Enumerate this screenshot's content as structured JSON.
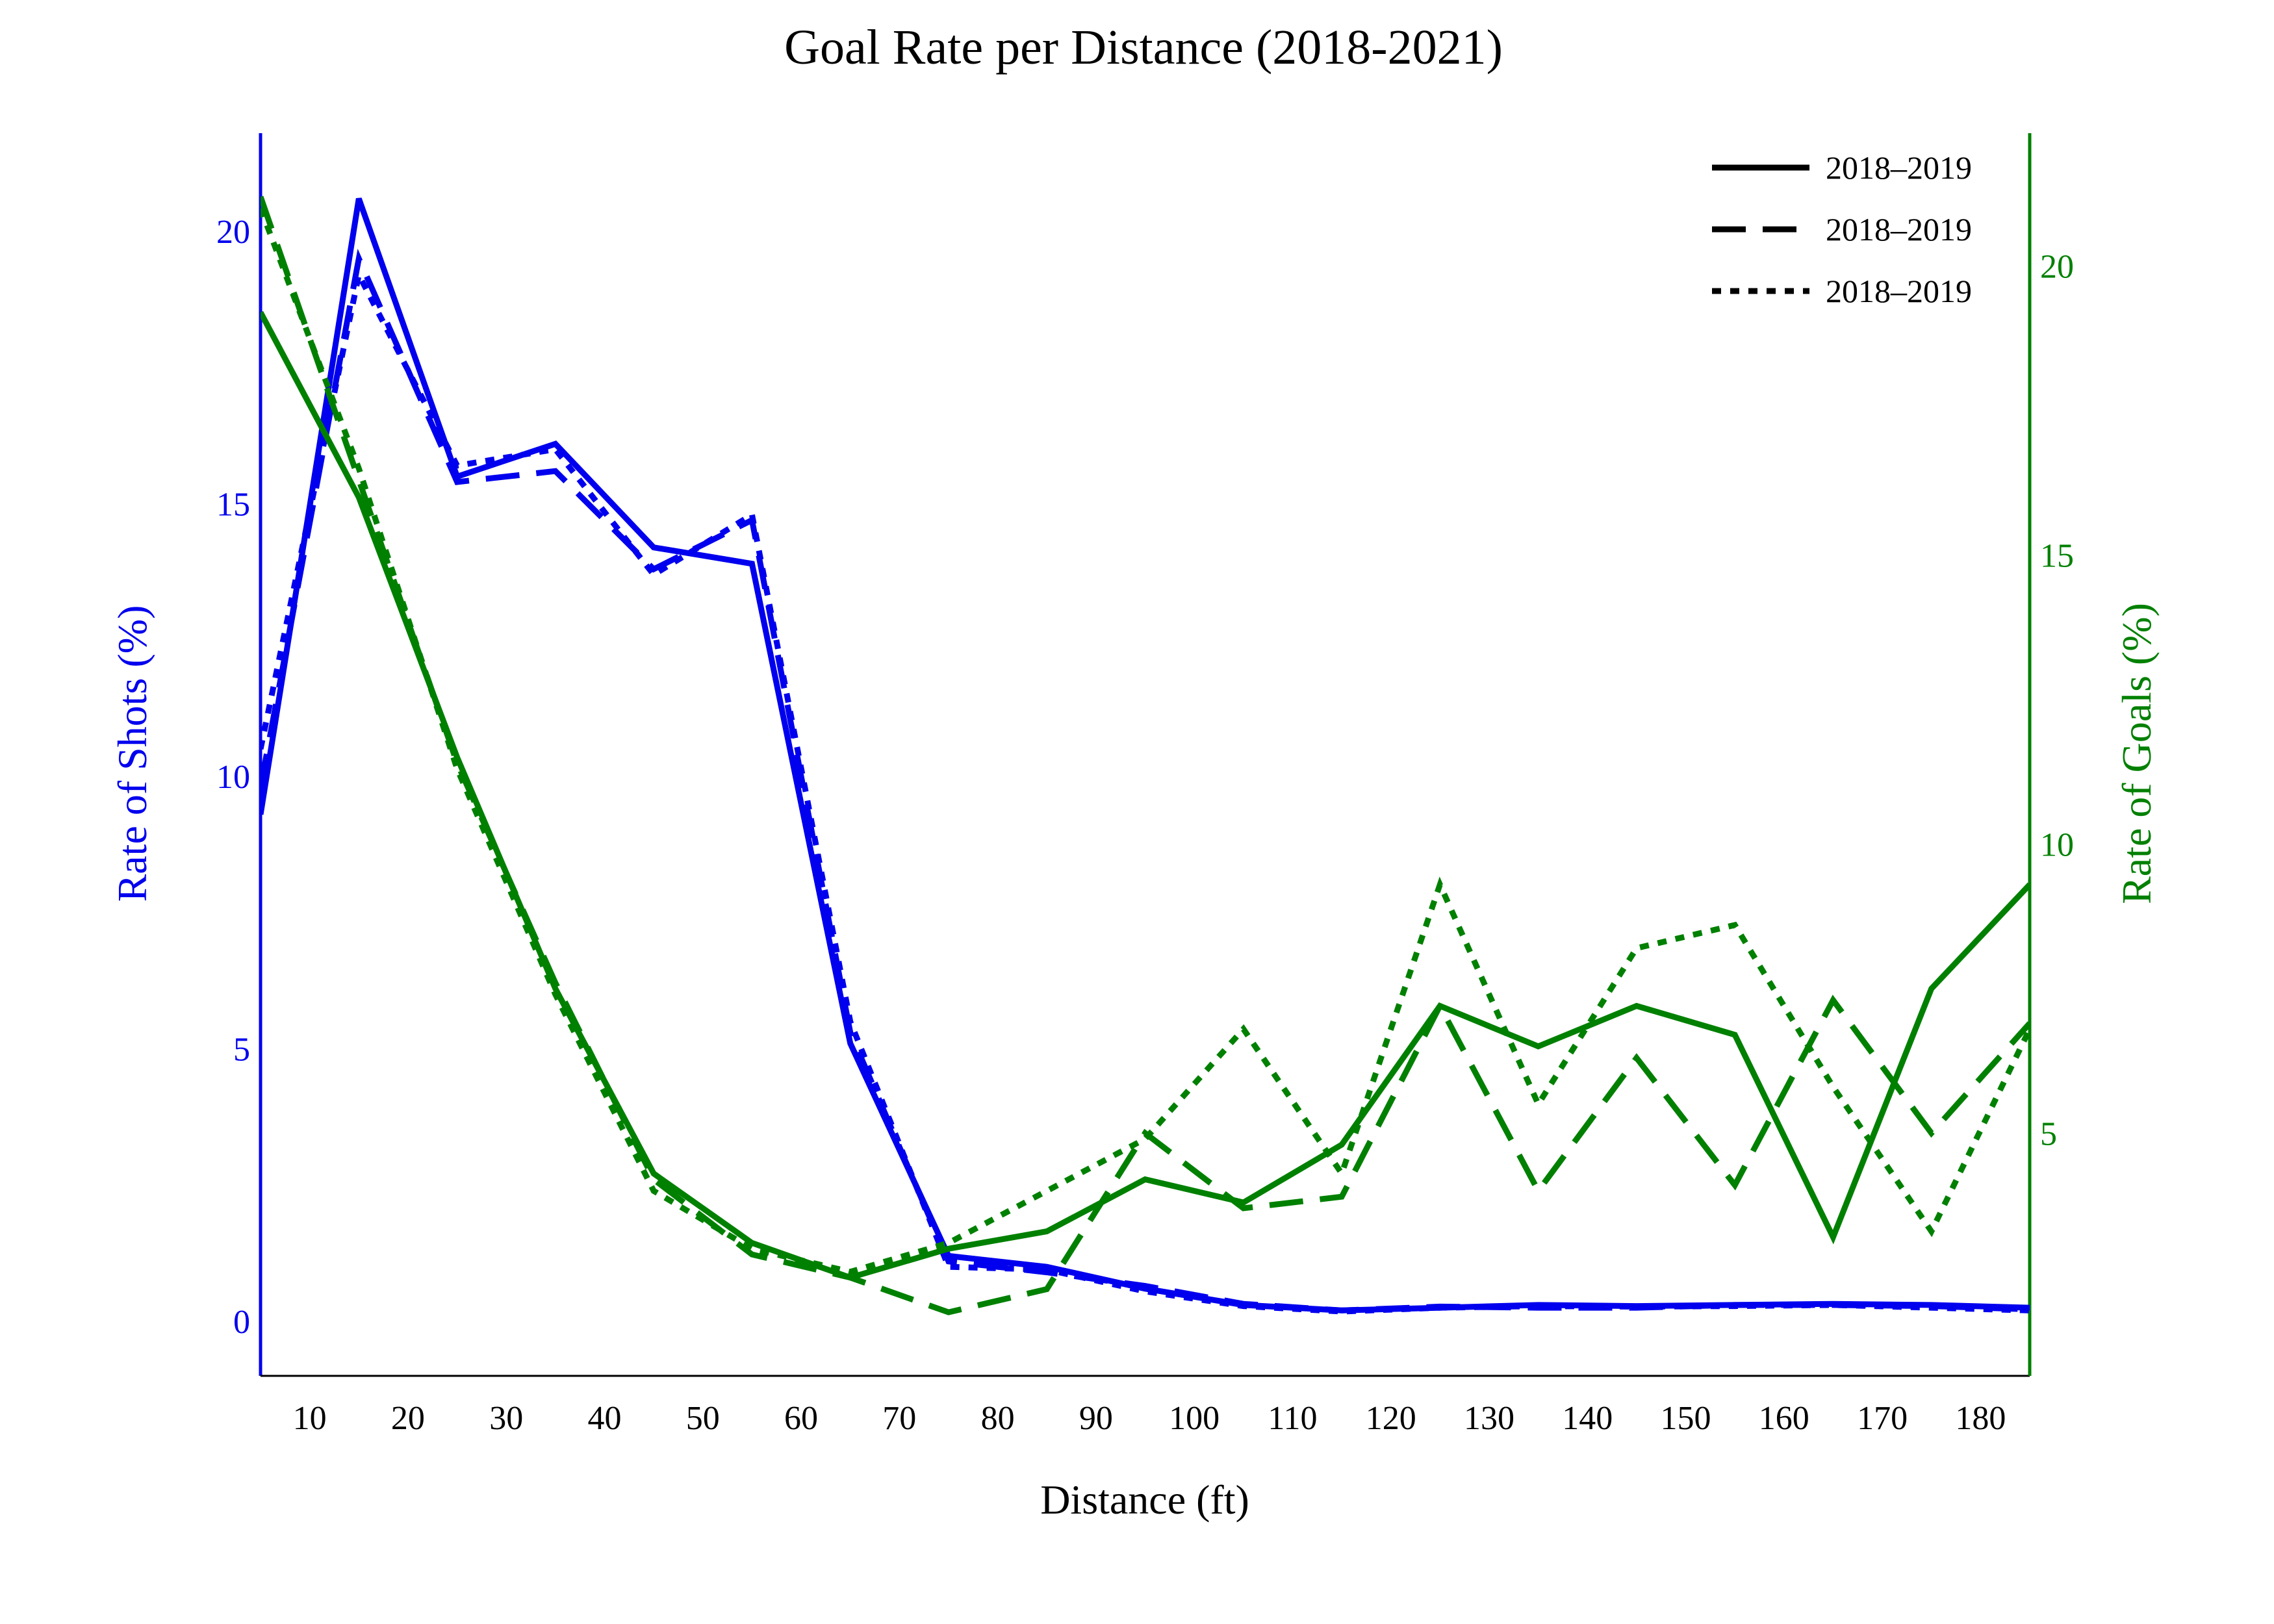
{
  "chart_data": {
    "type": "line",
    "title": "Goal Rate per Distance (2018-2021)",
    "xlabel": "Distance (ft)",
    "ylabel_left": "Rate of Shots (%)",
    "ylabel_right": "Rate of Goals (%)",
    "x": [
      5,
      15,
      25,
      35,
      45,
      55,
      65,
      75,
      85,
      95,
      105,
      115,
      125,
      135,
      145,
      155,
      165,
      175,
      185
    ],
    "xlim": [
      5,
      185
    ],
    "xticks": [
      10,
      20,
      30,
      40,
      50,
      60,
      70,
      80,
      90,
      100,
      110,
      120,
      130,
      140,
      150,
      160,
      170,
      180
    ],
    "ylim_left": [
      -1,
      21.8
    ],
    "yticks_left": [
      0,
      5,
      10,
      15,
      20
    ],
    "ylim_right": [
      0.8,
      22.3
    ],
    "yticks_right": [
      5,
      10,
      15,
      20
    ],
    "colors": {
      "shots": "#0000ee",
      "goals": "#008000",
      "legend": "#000000"
    },
    "legend": {
      "position": "top-right",
      "entries": [
        {
          "label": "2018–2019",
          "dash": "solid"
        },
        {
          "label": "2018–2019",
          "dash": "dash"
        },
        {
          "label": "2018–2019",
          "dash": "dot"
        }
      ]
    },
    "series": [
      {
        "metric": "shots",
        "axis": "left",
        "dash": "solid",
        "values": [
          9.3,
          20.6,
          15.5,
          16.1,
          14.2,
          13.9,
          5.1,
          1.2,
          1.0,
          0.6,
          0.3,
          0.2,
          0.25,
          0.3,
          0.28,
          0.3,
          0.32,
          0.3,
          0.25
        ]
      },
      {
        "metric": "shots",
        "axis": "left",
        "dash": "dash",
        "values": [
          9.8,
          19.5,
          15.4,
          15.6,
          13.8,
          14.7,
          5.3,
          1.1,
          0.9,
          0.65,
          0.32,
          0.2,
          0.27,
          0.25,
          0.25,
          0.3,
          0.3,
          0.28,
          0.22
        ]
      },
      {
        "metric": "shots",
        "axis": "left",
        "dash": "dot",
        "values": [
          10.5,
          19.2,
          15.7,
          16.0,
          13.7,
          14.8,
          5.5,
          1.0,
          0.95,
          0.55,
          0.28,
          0.18,
          0.25,
          0.28,
          0.27,
          0.28,
          0.3,
          0.25,
          0.2
        ]
      },
      {
        "metric": "goals",
        "axis": "right",
        "dash": "solid",
        "values": [
          19.2,
          16.0,
          11.5,
          7.5,
          4.3,
          3.1,
          2.5,
          3.0,
          3.3,
          4.2,
          3.8,
          4.8,
          7.2,
          6.5,
          7.2,
          6.7,
          3.2,
          7.5,
          9.3
        ]
      },
      {
        "metric": "goals",
        "axis": "right",
        "dash": "dash",
        "values": [
          21.2,
          16.3,
          11.4,
          7.6,
          4.2,
          2.9,
          2.5,
          1.9,
          2.3,
          5.0,
          3.7,
          3.9,
          7.2,
          4.0,
          6.3,
          4.1,
          7.3,
          5.0,
          6.9
        ]
      },
      {
        "metric": "goals",
        "axis": "right",
        "dash": "dot",
        "values": [
          21.0,
          16.5,
          11.3,
          7.4,
          4.0,
          3.0,
          2.6,
          3.1,
          4.0,
          4.9,
          6.8,
          4.3,
          9.3,
          5.5,
          8.2,
          8.6,
          5.8,
          3.3,
          6.8
        ]
      }
    ]
  }
}
